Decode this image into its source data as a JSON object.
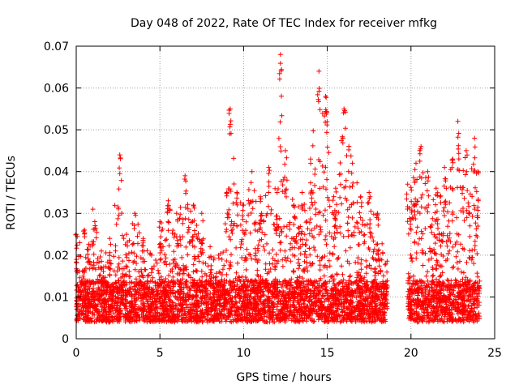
{
  "chart_data": {
    "type": "scatter",
    "title": "Day 048 of 2022, Rate Of TEC Index for receiver mfkg",
    "xlabel": "GPS time / hours",
    "ylabel": "ROTI / TECUs",
    "xlim": [
      0,
      25
    ],
    "ylim": [
      0,
      0.07
    ],
    "xticks": [
      "0",
      "5",
      "10",
      "15",
      "20",
      "25"
    ],
    "yticks": [
      "0",
      "0.01",
      "0.02",
      "0.03",
      "0.04",
      "0.05",
      "0.06",
      "0.07"
    ],
    "grid": true,
    "legend": "none",
    "marker": "+",
    "series": [
      {
        "color": "#ff0000",
        "data_gap_hours": [
          18.6,
          19.8
        ],
        "baseline_range": [
          0.004,
          0.014
        ],
        "envelope": [
          [
            0.0,
            0.025
          ],
          [
            0.5,
            0.026
          ],
          [
            1.0,
            0.031
          ],
          [
            1.5,
            0.021
          ],
          [
            2.0,
            0.024
          ],
          [
            2.6,
            0.044
          ],
          [
            3.0,
            0.025
          ],
          [
            3.5,
            0.03
          ],
          [
            4.0,
            0.024
          ],
          [
            4.5,
            0.02
          ],
          [
            5.0,
            0.028
          ],
          [
            5.5,
            0.033
          ],
          [
            6.0,
            0.03
          ],
          [
            6.5,
            0.039
          ],
          [
            7.0,
            0.032
          ],
          [
            7.5,
            0.03
          ],
          [
            8.0,
            0.022
          ],
          [
            8.5,
            0.02
          ],
          [
            9.0,
            0.035
          ],
          [
            9.2,
            0.055
          ],
          [
            9.6,
            0.035
          ],
          [
            10.0,
            0.032
          ],
          [
            10.5,
            0.04
          ],
          [
            11.0,
            0.034
          ],
          [
            11.5,
            0.041
          ],
          [
            12.0,
            0.035
          ],
          [
            12.2,
            0.068
          ],
          [
            12.5,
            0.045
          ],
          [
            13.0,
            0.032
          ],
          [
            13.5,
            0.035
          ],
          [
            14.0,
            0.043
          ],
          [
            14.5,
            0.064
          ],
          [
            14.9,
            0.058
          ],
          [
            15.5,
            0.036
          ],
          [
            16.0,
            0.055
          ],
          [
            16.5,
            0.042
          ],
          [
            17.0,
            0.034
          ],
          [
            17.5,
            0.035
          ],
          [
            18.0,
            0.03
          ],
          [
            18.5,
            0.018
          ],
          [
            19.8,
            0.037
          ],
          [
            20.3,
            0.042
          ],
          [
            20.6,
            0.046
          ],
          [
            21.0,
            0.04
          ],
          [
            21.5,
            0.036
          ],
          [
            22.0,
            0.041
          ],
          [
            22.5,
            0.043
          ],
          [
            22.8,
            0.052
          ],
          [
            23.3,
            0.045
          ],
          [
            23.8,
            0.048
          ],
          [
            24.0,
            0.04
          ]
        ]
      }
    ]
  }
}
